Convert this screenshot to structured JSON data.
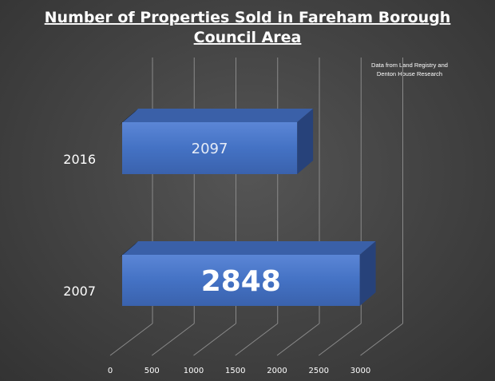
{
  "chart_data": {
    "type": "bar",
    "orientation": "horizontal",
    "title": "Number of Properties Sold in Fareham Borough Council Area",
    "title_lines": [
      "Number of Properties Sold in Fareham Borough",
      "Council Area"
    ],
    "annotation": "Data from  Land Registry and Denton House Research",
    "annotation_lines": [
      "Data from  Land Registry and",
      "Denton House Research"
    ],
    "categories": [
      "2016",
      "2007"
    ],
    "values": [
      2097,
      2848
    ],
    "data_labels": [
      "2097",
      "2848"
    ],
    "xlim": [
      0,
      3000
    ],
    "x_ticks": [
      "0",
      "500",
      "1000",
      "1500",
      "2000",
      "2500",
      "3000"
    ],
    "xlabel": "",
    "ylabel": "",
    "grid": true,
    "legend": "none",
    "style": "3d-bar",
    "colors": {
      "bar_front": "#4472C4",
      "bar_top": "#3A60A8",
      "bar_side": "#27427A",
      "background": "#454545",
      "text": "#ffffff"
    }
  }
}
